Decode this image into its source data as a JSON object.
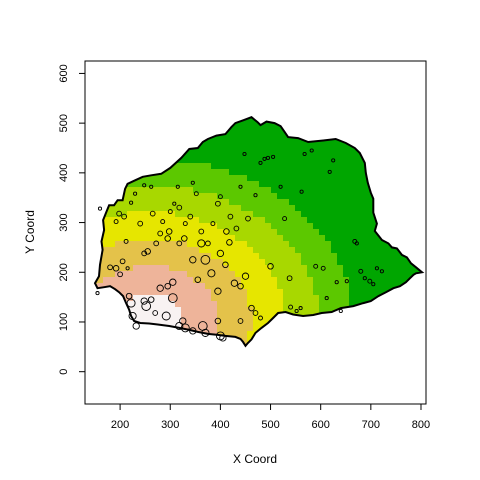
{
  "chart_data": {
    "type": "heatmap",
    "title": "",
    "xlabel": "X Coord",
    "ylabel": "Y Coord",
    "xlim": [
      130,
      810
    ],
    "ylim": [
      -65,
      625
    ],
    "xticks": [
      "200",
      "300",
      "400",
      "500",
      "600",
      "700",
      "800"
    ],
    "yticks": [
      "0",
      "100",
      "200",
      "300",
      "400",
      "500",
      "600"
    ],
    "surface": {
      "description_colors": [
        "#f8f2f2",
        "#eeb49a",
        "#e4c24a",
        "#e6e600",
        "#a8d800",
        "#5cc800",
        "#00a600"
      ],
      "peak": {
        "x": 260,
        "y": 105
      },
      "gradient_direction": "decreasing toward north-east"
    },
    "boundary": [
      [
        155,
        168
      ],
      [
        150,
        178
      ],
      [
        158,
        192
      ],
      [
        160,
        215
      ],
      [
        165,
        245
      ],
      [
        163,
        262
      ],
      [
        168,
        285
      ],
      [
        166,
        305
      ],
      [
        172,
        320
      ],
      [
        178,
        335
      ],
      [
        188,
        335
      ],
      [
        195,
        345
      ],
      [
        205,
        345
      ],
      [
        210,
        368
      ],
      [
        215,
        378
      ],
      [
        230,
        385
      ],
      [
        245,
        392
      ],
      [
        262,
        395
      ],
      [
        282,
        398
      ],
      [
        300,
        410
      ],
      [
        322,
        430
      ],
      [
        338,
        448
      ],
      [
        355,
        450
      ],
      [
        365,
        462
      ],
      [
        375,
        468
      ],
      [
        392,
        475
      ],
      [
        410,
        478
      ],
      [
        422,
        492
      ],
      [
        430,
        500
      ],
      [
        446,
        506
      ],
      [
        462,
        512
      ],
      [
        474,
        502
      ],
      [
        480,
        496
      ],
      [
        492,
        503
      ],
      [
        508,
        500
      ],
      [
        520,
        494
      ],
      [
        535,
        472
      ],
      [
        555,
        470
      ],
      [
        575,
        462
      ],
      [
        605,
        465
      ],
      [
        630,
        468
      ],
      [
        650,
        460
      ],
      [
        668,
        450
      ],
      [
        678,
        440
      ],
      [
        688,
        420
      ],
      [
        690,
        400
      ],
      [
        694,
        380
      ],
      [
        700,
        360
      ],
      [
        705,
        348
      ],
      [
        705,
        320
      ],
      [
        712,
        298
      ],
      [
        708,
        283
      ],
      [
        722,
        265
      ],
      [
        735,
        258
      ],
      [
        742,
        250
      ],
      [
        752,
        248
      ],
      [
        762,
        235
      ],
      [
        772,
        230
      ],
      [
        780,
        218
      ],
      [
        790,
        210
      ],
      [
        802,
        200
      ],
      [
        790,
        198
      ],
      [
        785,
        195
      ],
      [
        778,
        188
      ],
      [
        770,
        180
      ],
      [
        758,
        172
      ],
      [
        745,
        168
      ],
      [
        730,
        160
      ],
      [
        715,
        152
      ],
      [
        700,
        142
      ],
      [
        685,
        138
      ],
      [
        665,
        132
      ],
      [
        640,
        128
      ],
      [
        622,
        120
      ],
      [
        602,
        118
      ],
      [
        585,
        114
      ],
      [
        565,
        112
      ],
      [
        545,
        115
      ],
      [
        530,
        120
      ],
      [
        515,
        118
      ],
      [
        505,
        108
      ],
      [
        495,
        98
      ],
      [
        482,
        88
      ],
      [
        470,
        78
      ],
      [
        462,
        65
      ],
      [
        455,
        58
      ],
      [
        450,
        52
      ],
      [
        445,
        60
      ],
      [
        440,
        66
      ],
      [
        430,
        70
      ],
      [
        410,
        72
      ],
      [
        395,
        74
      ],
      [
        375,
        76
      ],
      [
        355,
        80
      ],
      [
        338,
        84
      ],
      [
        318,
        88
      ],
      [
        298,
        92
      ],
      [
        275,
        95
      ],
      [
        258,
        97
      ],
      [
        240,
        98
      ],
      [
        228,
        102
      ],
      [
        222,
        112
      ],
      [
        218,
        125
      ],
      [
        212,
        138
      ],
      [
        206,
        152
      ],
      [
        198,
        160
      ],
      [
        190,
        166
      ],
      [
        180,
        172
      ],
      [
        168,
        170
      ],
      [
        155,
        168
      ]
    ],
    "points": [
      {
        "x": 155,
        "y": 158,
        "size": 1.0
      },
      {
        "x": 180,
        "y": 210,
        "size": 1.2
      },
      {
        "x": 192,
        "y": 208,
        "size": 1.3
      },
      {
        "x": 200,
        "y": 196,
        "size": 1.2
      },
      {
        "x": 218,
        "y": 152,
        "size": 1.3
      },
      {
        "x": 222,
        "y": 138,
        "size": 1.6
      },
      {
        "x": 225,
        "y": 112,
        "size": 1.5
      },
      {
        "x": 232,
        "y": 92,
        "size": 1.4
      },
      {
        "x": 248,
        "y": 142,
        "size": 1.4
      },
      {
        "x": 252,
        "y": 132,
        "size": 1.7
      },
      {
        "x": 262,
        "y": 145,
        "size": 1.3
      },
      {
        "x": 270,
        "y": 118,
        "size": 1.2
      },
      {
        "x": 292,
        "y": 112,
        "size": 1.6
      },
      {
        "x": 305,
        "y": 148,
        "size": 1.7
      },
      {
        "x": 318,
        "y": 92,
        "size": 1.5
      },
      {
        "x": 325,
        "y": 102,
        "size": 1.4
      },
      {
        "x": 330,
        "y": 88,
        "size": 1.6
      },
      {
        "x": 345,
        "y": 82,
        "size": 1.4
      },
      {
        "x": 365,
        "y": 92,
        "size": 1.7
      },
      {
        "x": 370,
        "y": 78,
        "size": 1.5
      },
      {
        "x": 395,
        "y": 102,
        "size": 1.3
      },
      {
        "x": 400,
        "y": 72,
        "size": 1.6
      },
      {
        "x": 405,
        "y": 68,
        "size": 1.4
      },
      {
        "x": 440,
        "y": 102,
        "size": 1.2
      },
      {
        "x": 215,
        "y": 208,
        "size": 1.0
      },
      {
        "x": 248,
        "y": 238,
        "size": 1.2
      },
      {
        "x": 255,
        "y": 242,
        "size": 1.3
      },
      {
        "x": 280,
        "y": 168,
        "size": 1.4
      },
      {
        "x": 295,
        "y": 172,
        "size": 1.3
      },
      {
        "x": 305,
        "y": 180,
        "size": 1.4
      },
      {
        "x": 318,
        "y": 258,
        "size": 1.2
      },
      {
        "x": 328,
        "y": 268,
        "size": 1.3
      },
      {
        "x": 345,
        "y": 225,
        "size": 1.4
      },
      {
        "x": 355,
        "y": 185,
        "size": 1.3
      },
      {
        "x": 362,
        "y": 258,
        "size": 1.5
      },
      {
        "x": 370,
        "y": 225,
        "size": 1.7
      },
      {
        "x": 382,
        "y": 198,
        "size": 1.5
      },
      {
        "x": 395,
        "y": 162,
        "size": 1.4
      },
      {
        "x": 400,
        "y": 238,
        "size": 1.4
      },
      {
        "x": 410,
        "y": 215,
        "size": 1.3
      },
      {
        "x": 418,
        "y": 260,
        "size": 1.3
      },
      {
        "x": 428,
        "y": 178,
        "size": 1.4
      },
      {
        "x": 440,
        "y": 172,
        "size": 1.3
      },
      {
        "x": 450,
        "y": 192,
        "size": 1.4
      },
      {
        "x": 462,
        "y": 128,
        "size": 1.3
      },
      {
        "x": 470,
        "y": 118,
        "size": 1.2
      },
      {
        "x": 480,
        "y": 108,
        "size": 1.1
      },
      {
        "x": 500,
        "y": 212,
        "size": 1.3
      },
      {
        "x": 192,
        "y": 302,
        "size": 1.1
      },
      {
        "x": 198,
        "y": 318,
        "size": 1.2
      },
      {
        "x": 208,
        "y": 312,
        "size": 1.2
      },
      {
        "x": 212,
        "y": 262,
        "size": 1.1
      },
      {
        "x": 222,
        "y": 340,
        "size": 1.0
      },
      {
        "x": 230,
        "y": 358,
        "size": 1.0
      },
      {
        "x": 240,
        "y": 298,
        "size": 1.2
      },
      {
        "x": 248,
        "y": 375,
        "size": 1.0
      },
      {
        "x": 262,
        "y": 372,
        "size": 1.0
      },
      {
        "x": 265,
        "y": 318,
        "size": 1.2
      },
      {
        "x": 272,
        "y": 258,
        "size": 1.2
      },
      {
        "x": 280,
        "y": 278,
        "size": 1.2
      },
      {
        "x": 285,
        "y": 302,
        "size": 1.1
      },
      {
        "x": 295,
        "y": 268,
        "size": 1.3
      },
      {
        "x": 298,
        "y": 282,
        "size": 1.3
      },
      {
        "x": 300,
        "y": 322,
        "size": 1.1
      },
      {
        "x": 308,
        "y": 338,
        "size": 1.0
      },
      {
        "x": 315,
        "y": 372,
        "size": 1.0
      },
      {
        "x": 318,
        "y": 330,
        "size": 1.2
      },
      {
        "x": 330,
        "y": 298,
        "size": 1.1
      },
      {
        "x": 340,
        "y": 312,
        "size": 1.2
      },
      {
        "x": 345,
        "y": 380,
        "size": 1.0
      },
      {
        "x": 352,
        "y": 358,
        "size": 1.1
      },
      {
        "x": 362,
        "y": 282,
        "size": 1.2
      },
      {
        "x": 375,
        "y": 258,
        "size": 1.2
      },
      {
        "x": 385,
        "y": 298,
        "size": 1.1
      },
      {
        "x": 395,
        "y": 338,
        "size": 1.2
      },
      {
        "x": 400,
        "y": 352,
        "size": 1.1
      },
      {
        "x": 412,
        "y": 282,
        "size": 1.3
      },
      {
        "x": 420,
        "y": 312,
        "size": 1.2
      },
      {
        "x": 432,
        "y": 288,
        "size": 1.2
      },
      {
        "x": 440,
        "y": 372,
        "size": 1.0
      },
      {
        "x": 448,
        "y": 438,
        "size": 1.0
      },
      {
        "x": 455,
        "y": 308,
        "size": 1.2
      },
      {
        "x": 470,
        "y": 355,
        "size": 1.0
      },
      {
        "x": 480,
        "y": 420,
        "size": 1.0
      },
      {
        "x": 488,
        "y": 428,
        "size": 1.0
      },
      {
        "x": 495,
        "y": 430,
        "size": 1.0
      },
      {
        "x": 505,
        "y": 432,
        "size": 1.0
      },
      {
        "x": 520,
        "y": 372,
        "size": 1.0
      },
      {
        "x": 528,
        "y": 308,
        "size": 1.1
      },
      {
        "x": 538,
        "y": 188,
        "size": 1.2
      },
      {
        "x": 540,
        "y": 130,
        "size": 1.1
      },
      {
        "x": 552,
        "y": 122,
        "size": 1.0
      },
      {
        "x": 560,
        "y": 128,
        "size": 1.0
      },
      {
        "x": 562,
        "y": 362,
        "size": 1.0
      },
      {
        "x": 568,
        "y": 438,
        "size": 1.0
      },
      {
        "x": 582,
        "y": 445,
        "size": 1.0
      },
      {
        "x": 590,
        "y": 212,
        "size": 1.1
      },
      {
        "x": 605,
        "y": 208,
        "size": 1.1
      },
      {
        "x": 612,
        "y": 148,
        "size": 1.0
      },
      {
        "x": 618,
        "y": 402,
        "size": 1.0
      },
      {
        "x": 625,
        "y": 425,
        "size": 1.0
      },
      {
        "x": 632,
        "y": 180,
        "size": 1.0
      },
      {
        "x": 640,
        "y": 122,
        "size": 1.0
      },
      {
        "x": 652,
        "y": 182,
        "size": 1.0
      },
      {
        "x": 668,
        "y": 262,
        "size": 1.1
      },
      {
        "x": 672,
        "y": 258,
        "size": 1.0
      },
      {
        "x": 680,
        "y": 202,
        "size": 1.1
      },
      {
        "x": 688,
        "y": 188,
        "size": 1.0
      },
      {
        "x": 698,
        "y": 182,
        "size": 1.1
      },
      {
        "x": 705,
        "y": 176,
        "size": 1.0
      },
      {
        "x": 712,
        "y": 208,
        "size": 1.0
      },
      {
        "x": 722,
        "y": 202,
        "size": 1.0
      },
      {
        "x": 160,
        "y": 328,
        "size": 1.0
      },
      {
        "x": 205,
        "y": 222,
        "size": 1.2
      }
    ]
  }
}
